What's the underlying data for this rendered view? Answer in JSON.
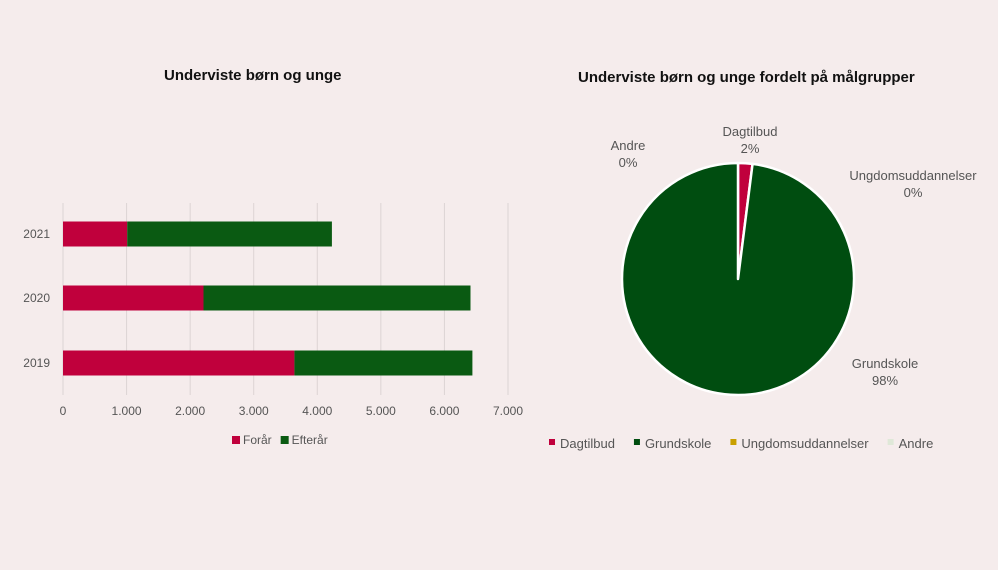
{
  "chart_data": [
    {
      "type": "bar",
      "orientation": "horizontal",
      "stacked": true,
      "title": "Underviste børn og unge",
      "categories": [
        "2021",
        "2020",
        "2019"
      ],
      "series": [
        {
          "name": "Forår",
          "color": "#c0003c",
          "values": [
            1010,
            2210,
            3640
          ]
        },
        {
          "name": "Efterår",
          "color": "#0a5a12",
          "values": [
            3220,
            4200,
            2800
          ]
        }
      ],
      "xlim": [
        0,
        7000
      ],
      "xticks": [
        "0",
        "1.000",
        "2.000",
        "3.000",
        "4.000",
        "5.000",
        "6.000",
        "7.000"
      ],
      "grid": true,
      "legend_position": "bottom"
    },
    {
      "type": "pie",
      "title": "Underviste børn og unge fordelt på målgrupper",
      "slices": [
        {
          "name": "Dagtilbud",
          "value": 2,
          "label": "2%",
          "color": "#c0003c"
        },
        {
          "name": "Grundskole",
          "value": 98,
          "label": "98%",
          "color": "#004d10"
        },
        {
          "name": "Ungdomsuddannelser",
          "value": 0,
          "label": "0%",
          "color": "#c9a000"
        },
        {
          "name": "Andre",
          "value": 0,
          "label": "0%",
          "color": "#dfe8d8"
        }
      ],
      "legend_position": "bottom"
    }
  ]
}
